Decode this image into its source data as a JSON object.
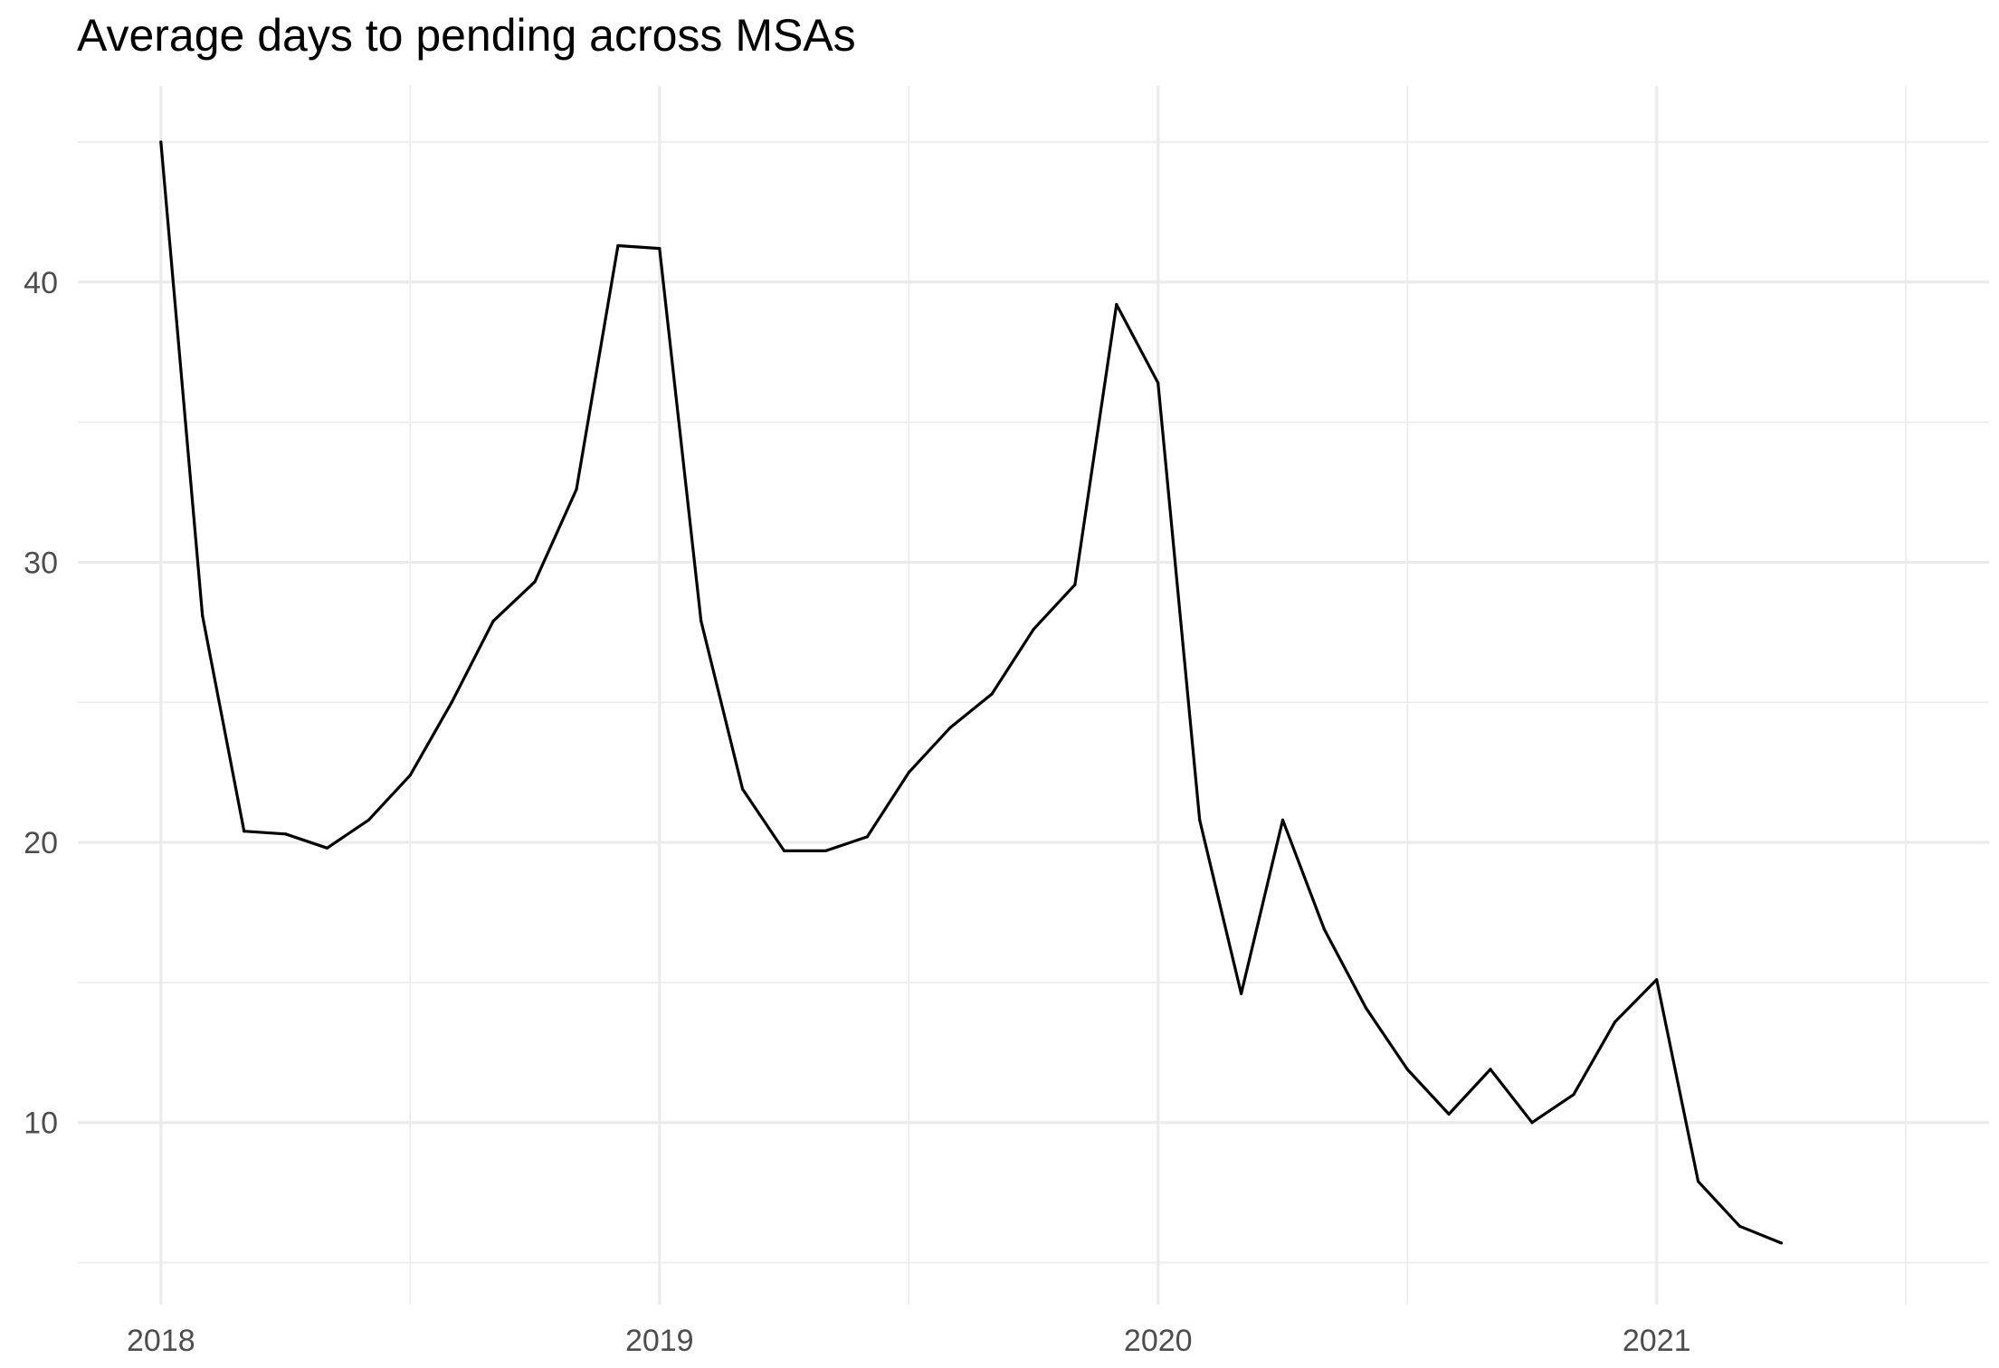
{
  "chart_data": {
    "type": "line",
    "title": "Average days to pending across MSAs",
    "xlabel": "",
    "ylabel": "",
    "x_tick_labels": [
      "2018",
      "2019",
      "2020",
      "2021"
    ],
    "y_tick_labels": [
      "10",
      "20",
      "30",
      "40"
    ],
    "y_ticks": [
      10,
      20,
      30,
      40
    ],
    "y_minor_ticks": [
      5,
      15,
      25,
      35,
      45
    ],
    "x_ticks": [
      "2018-01",
      "2019-01",
      "2020-01",
      "2021-01"
    ],
    "x_minor_ticks": [
      "2018-07",
      "2019-07",
      "2020-07",
      "2021-07"
    ],
    "xlim": [
      "2017-11",
      "2021-09"
    ],
    "ylim": [
      3.5,
      47
    ],
    "grid": true,
    "series": [
      {
        "color": "#000000",
        "x": [
          "2018-01",
          "2018-02",
          "2018-03",
          "2018-04",
          "2018-05",
          "2018-06",
          "2018-07",
          "2018-08",
          "2018-09",
          "2018-10",
          "2018-11",
          "2018-12",
          "2019-01",
          "2019-02",
          "2019-03",
          "2019-04",
          "2019-05",
          "2019-06",
          "2019-07",
          "2019-08",
          "2019-09",
          "2019-10",
          "2019-11",
          "2019-12",
          "2020-01",
          "2020-02",
          "2020-03",
          "2020-04",
          "2020-05",
          "2020-06",
          "2020-07",
          "2020-08",
          "2020-09",
          "2020-10",
          "2020-11",
          "2020-12",
          "2021-01",
          "2021-02",
          "2021-03",
          "2021-04"
        ],
        "values": [
          45.0,
          28.1,
          20.4,
          20.3,
          19.8,
          20.8,
          22.4,
          25.0,
          27.9,
          29.3,
          32.6,
          41.3,
          41.2,
          27.9,
          21.9,
          19.7,
          19.7,
          20.2,
          22.5,
          24.1,
          25.3,
          27.6,
          29.2,
          39.2,
          36.4,
          20.8,
          14.6,
          20.8,
          16.9,
          14.1,
          11.9,
          10.3,
          11.9,
          10.0,
          11.0,
          13.6,
          15.1,
          7.9,
          6.3,
          5.7
        ]
      }
    ]
  }
}
